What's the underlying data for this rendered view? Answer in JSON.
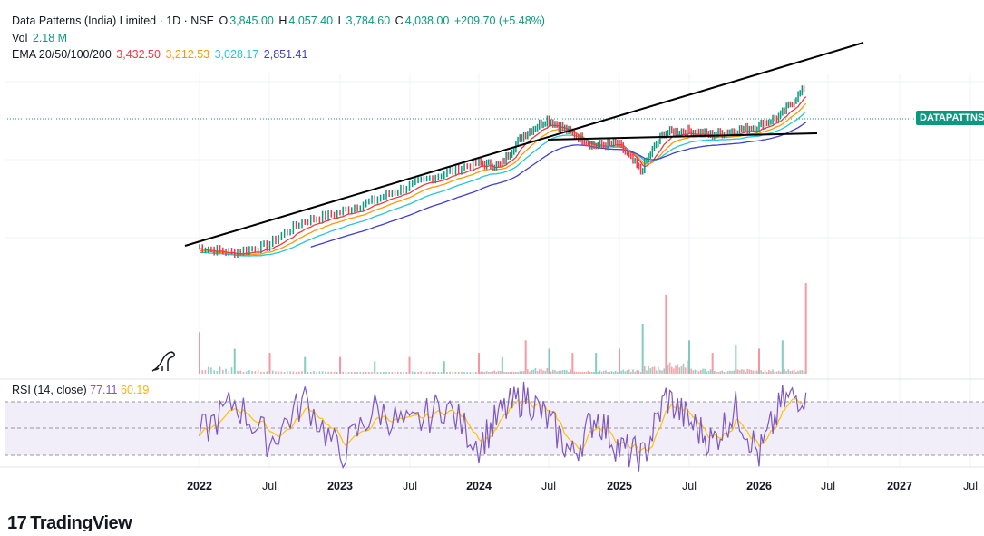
{
  "header": {
    "symbol": "Data Patterns (India) Limited · 1D · NSE",
    "open_label": "O",
    "open": "3,845.00",
    "high_label": "H",
    "high": "4,057.40",
    "low_label": "L",
    "low": "3,784.60",
    "close_label": "C",
    "close": "4,038.00",
    "change": "+209.70 (+5.48%)",
    "vol_label": "Vol",
    "vol": "2.18 M",
    "ema_label": "EMA 20/50/100/200",
    "ema20": "3,432.50",
    "ema50": "3,212.53",
    "ema100": "3,028.17",
    "ema200": "2,851.41"
  },
  "price_tag": "DATAPATTNS",
  "rsi": {
    "label": "RSI (14, close)",
    "value": "77.11",
    "ma": "60.19"
  },
  "brand": "TradingView",
  "colors": {
    "up": "#089981",
    "down": "#f23645",
    "ema20": "#f23645",
    "ema50": "#ff9800",
    "ema100": "#26c6da",
    "ema200": "#3f3fcf",
    "rsi": "#7e57c2",
    "rsi_ma": "#ffc107",
    "rsi_band": "#ede7f6"
  },
  "chart_data": {
    "type": "line",
    "title": "Data Patterns (India) Limited · 1D · NSE",
    "x_ticks": [
      "2022",
      "Jul",
      "2023",
      "Jul",
      "2024",
      "Jul",
      "2025",
      "Jul",
      "2026",
      "Jul",
      "2027",
      "Jul"
    ],
    "x_tick_bold": [
      true,
      false,
      true,
      false,
      true,
      false,
      true,
      false,
      true,
      false,
      true,
      false
    ],
    "x": [
      "2022-01",
      "2022-04",
      "2022-07",
      "2022-10",
      "2023-01",
      "2023-04",
      "2023-07",
      "2023-10",
      "2024-01",
      "2024-03",
      "2024-05",
      "2024-07",
      "2024-09",
      "2024-11",
      "2025-01",
      "2025-03",
      "2025-05",
      "2025-07",
      "2025-09",
      "2025-11",
      "2026-01",
      "2026-03",
      "2026-05"
    ],
    "series": [
      {
        "name": "Price",
        "values": [
          1000,
          950,
          1010,
          1250,
          1350,
          1500,
          1700,
          1900,
          2100,
          2050,
          2700,
          3100,
          2750,
          2450,
          2500,
          1950,
          2750,
          2800,
          2700,
          2800,
          2900,
          3200,
          4038
        ]
      },
      {
        "name": "RSI",
        "values": [
          45,
          70,
          40,
          72,
          30,
          65,
          50,
          68,
          38,
          62,
          75,
          55,
          30,
          60,
          35,
          28,
          74,
          55,
          40,
          65,
          30,
          70,
          77
        ]
      }
    ],
    "volume": [
      1.0,
      0.6,
      0.5,
      0.4,
      0.4,
      0.3,
      0.4,
      0.3,
      0.5,
      0.4,
      0.8,
      0.6,
      0.5,
      0.5,
      0.6,
      1.2,
      1.9,
      0.8,
      0.5,
      0.7,
      0.6,
      0.8,
      2.18
    ],
    "annotations": [
      "Rising trendline",
      "Horizontal resistance line"
    ],
    "rsi_levels": [
      70,
      50,
      30
    ],
    "ylim": [
      800,
      4500
    ],
    "grid": true,
    "legend": "top-left"
  }
}
